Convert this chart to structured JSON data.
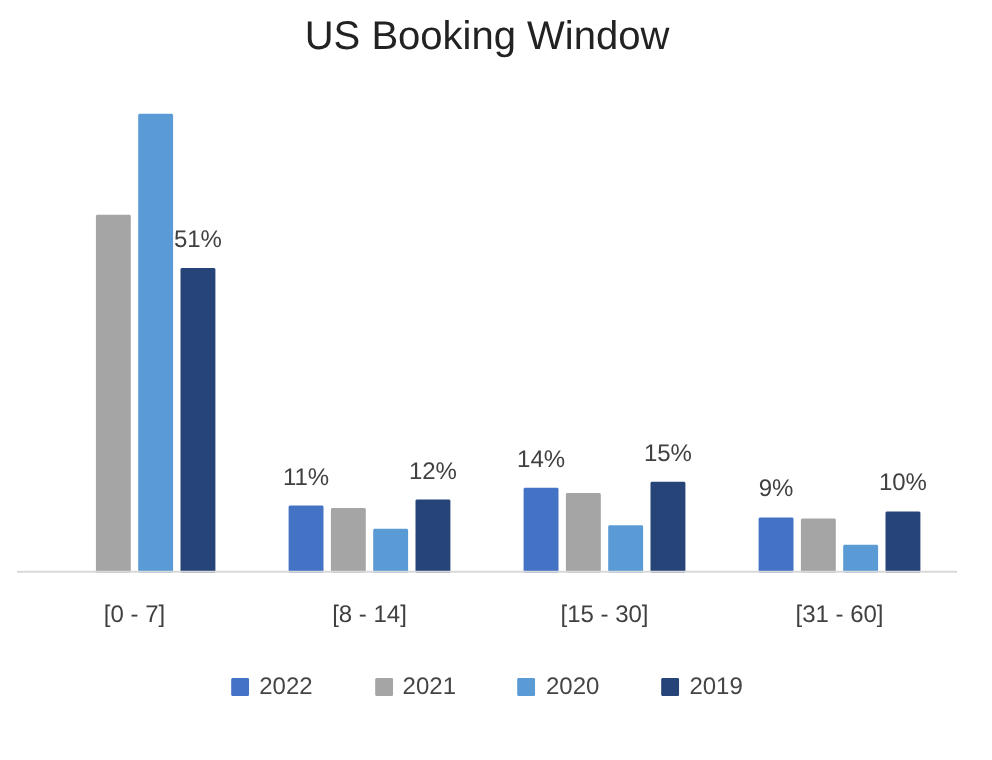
{
  "chart_data": {
    "type": "bar",
    "title": "US Booking Window",
    "categories": [
      "[0 - 7]",
      "[8 - 14]",
      "[15 - 30]",
      "[31 - 60]"
    ],
    "series": [
      {
        "name": "2022",
        "color": "#4472c4",
        "values": [
          null,
          11,
          14,
          9
        ],
        "value_labels": [
          null,
          "11%",
          "14%",
          "9%"
        ]
      },
      {
        "name": "2021",
        "color": "#a5a5a5",
        "values": [
          60,
          10.6,
          13.1,
          8.8
        ]
      },
      {
        "name": "2020",
        "color": "#5b9bd5",
        "values": [
          77,
          7.1,
          7.7,
          4.4
        ]
      },
      {
        "name": "2019",
        "color": "#264478",
        "values": [
          51,
          12,
          15,
          10
        ],
        "value_labels": [
          "51%",
          "12%",
          "15%",
          "10%"
        ]
      }
    ],
    "legend": "bottom"
  }
}
